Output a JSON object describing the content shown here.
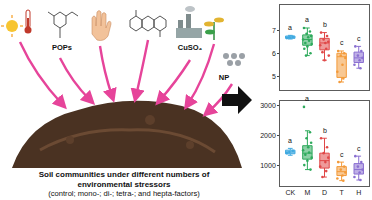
{
  "diagram": {
    "stressors": [
      "POPs",
      "CuSO₄",
      "NP"
    ],
    "caption": [
      "Soil communities under different numbers of",
      "environmental stressors",
      "(control; mono-; di-; tetra-; and hepta-factors)"
    ]
  },
  "chart_data": [
    {
      "type": "box",
      "categories": [
        "CK",
        "M",
        "D",
        "T",
        "H"
      ],
      "colors": [
        "#3fa9e0",
        "#2eaa5c",
        "#e04848",
        "#f39a3a",
        "#8a6fd1"
      ],
      "q1": [
        6.65,
        6.35,
        6.15,
        4.95,
        5.6
      ],
      "median": [
        6.7,
        6.6,
        6.45,
        5.85,
        5.8
      ],
      "q3": [
        6.75,
        6.8,
        6.65,
        6.0,
        6.05
      ],
      "lowerfence": [
        6.62,
        5.9,
        5.7,
        4.75,
        5.35
      ],
      "upperfence": [
        6.78,
        7.1,
        6.9,
        6.1,
        6.3
      ],
      "points": [
        [
          6.66,
          6.72,
          6.7
        ],
        [
          7.1,
          6.95,
          6.85,
          6.75,
          6.7,
          6.6,
          6.55,
          6.45,
          6.4,
          6.3,
          6.2,
          6.0,
          5.9
        ],
        [
          6.9,
          6.75,
          6.6,
          6.5,
          6.45,
          6.35,
          6.2,
          6.05,
          5.9,
          5.7
        ],
        [
          6.1,
          6.0,
          5.9,
          5.8,
          5.5,
          5.2,
          4.9,
          4.75
        ],
        [
          6.3,
          6.1,
          5.9,
          5.8,
          5.7,
          5.5,
          5.35
        ]
      ],
      "letters": [
        "a",
        "a",
        "b",
        "c",
        "c"
      ],
      "ylim": [
        4.4,
        8.1
      ],
      "yticks": [
        5,
        6,
        7
      ],
      "tick_labels": "y"
    },
    {
      "type": "box",
      "categories": [
        "CK",
        "M",
        "D",
        "T",
        "H"
      ],
      "colors": [
        "#3fa9e0",
        "#2eaa5c",
        "#e04848",
        "#f39a3a",
        "#8a6fd1"
      ],
      "q1": [
        1380,
        1200,
        900,
        650,
        700
      ],
      "median": [
        1440,
        1400,
        1150,
        780,
        850
      ],
      "q3": [
        1500,
        1650,
        1400,
        950,
        1050
      ],
      "lowerfence": [
        1330,
        850,
        600,
        480,
        500
      ],
      "upperfence": [
        1560,
        2150,
        1900,
        1100,
        1300
      ],
      "points": [
        [
          1400,
          1480,
          1440
        ],
        [
          2950,
          2100,
          1900,
          1750,
          1600,
          1500,
          1420,
          1350,
          1250,
          1150,
          1000,
          850
        ],
        [
          1900,
          1600,
          1400,
          1250,
          1100,
          950,
          800,
          600
        ],
        [
          1100,
          950,
          850,
          750,
          650,
          550,
          480
        ],
        [
          1300,
          1100,
          950,
          850,
          750,
          600,
          500
        ]
      ],
      "letters": [
        "a",
        "a",
        "b",
        "c",
        "c"
      ],
      "ylim": [
        300,
        3150
      ],
      "yticks": [
        1000,
        2000,
        3000
      ],
      "tick_labels": true
    }
  ]
}
